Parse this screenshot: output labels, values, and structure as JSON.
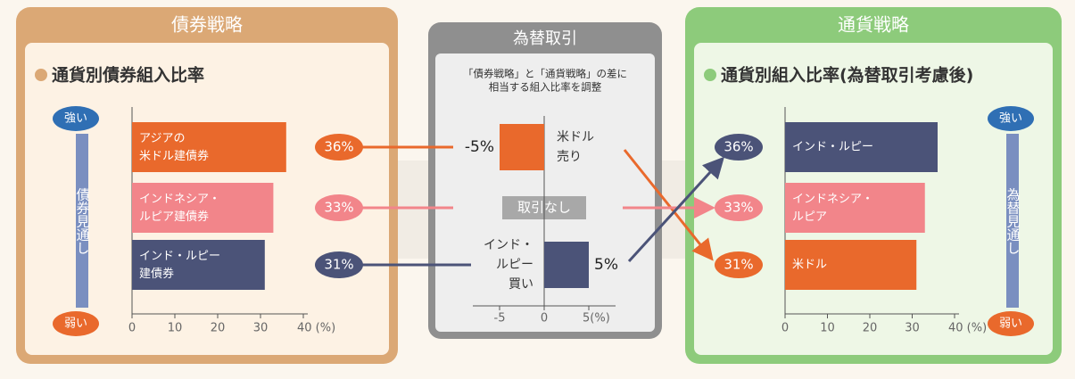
{
  "chart_data": [
    {
      "type": "bar",
      "header": "債券戦略",
      "title": "通貨別債券組入比率",
      "categories": [
        "アジアの\n米ドル建債券",
        "インドネシア・\nルピア建債券",
        "インド・ルピー\n建債券"
      ],
      "values": [
        36,
        33,
        31
      ],
      "value_labels": [
        "36%",
        "33%",
        "31%"
      ],
      "colors": [
        "#e9692c",
        "#f2858a",
        "#4b5378"
      ],
      "xlim": [
        0,
        40
      ],
      "xticks": [
        0,
        10,
        20,
        30,
        {
          "value": 40,
          "label": "40 (%)"
        }
      ],
      "strong": "強い",
      "weak": "弱い",
      "outlook": "債券見通し"
    },
    {
      "type": "bar",
      "header": "為替取引",
      "note": "「債券戦略」と「通貨戦略」の差に\n相当する組入比率を調整",
      "categories": [
        "米ドル\n売り",
        "取引なし",
        "インド・\nルピー\n買い"
      ],
      "values": [
        -5,
        0,
        5
      ],
      "value_labels": [
        "-5%",
        null,
        "5%"
      ],
      "colors": [
        "#e9692c",
        "#9a9a9a",
        "#4b5378"
      ],
      "xlim": [
        -7,
        7
      ],
      "xticks": [
        -5,
        0,
        {
          "value": 5,
          "label": "5(%)"
        }
      ]
    },
    {
      "type": "bar",
      "header": "通貨戦略",
      "title": "通貨別組入比率(為替取引考慮後)",
      "categories": [
        "インド・ルピー",
        "インドネシア・\nルピア",
        "米ドル"
      ],
      "values": [
        36,
        33,
        31
      ],
      "value_labels": [
        "36%",
        "33%",
        "31%"
      ],
      "colors": [
        "#4b5378",
        "#f2858a",
        "#e9692c"
      ],
      "xlim": [
        0,
        40
      ],
      "xticks": [
        0,
        10,
        20,
        30,
        {
          "value": 40,
          "label": "40 (%)"
        }
      ],
      "strong": "強い",
      "weak": "弱い",
      "outlook": "為替見通し"
    }
  ]
}
